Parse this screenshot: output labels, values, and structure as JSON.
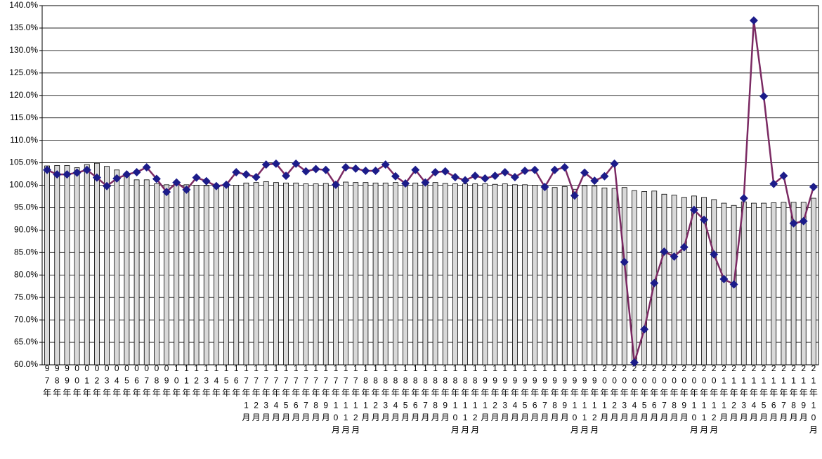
{
  "chart_data": {
    "type": "combo",
    "categories": [
      "97年",
      "98年",
      "99年",
      "00年",
      "01年",
      "02年",
      "03年",
      "04年",
      "05年",
      "06年",
      "07年",
      "08年",
      "09年",
      "10年",
      "11年",
      "12年",
      "13年",
      "14年",
      "15年",
      "16年",
      "17年1月",
      "17年2月",
      "17年3月",
      "17年4月",
      "17年5月",
      "17年6月",
      "17年7月",
      "17年8月",
      "17年9月",
      "17年10月",
      "17年11月",
      "17年12月",
      "18年1月",
      "18年2月",
      "18年3月",
      "18年4月",
      "18年5月",
      "18年6月",
      "18年7月",
      "18年8月",
      "18年9月",
      "18年10月",
      "18年11月",
      "18年12月",
      "19年1月",
      "19年2月",
      "19年3月",
      "19年4月",
      "19年5月",
      "19年6月",
      "19年7月",
      "19年8月",
      "19年9月",
      "19年10月",
      "19年11月",
      "19年12月",
      "20年1月",
      "20年2月",
      "20年3月",
      "20年4月",
      "20年5月",
      "20年6月",
      "20年7月",
      "20年8月",
      "20年9月",
      "20年10月",
      "20年11月",
      "20年12月",
      "21年1月",
      "21年2月",
      "21年3月",
      "21年4月",
      "21年5月",
      "21年6月",
      "21年7月",
      "21年8月",
      "21年9月",
      "21年10月"
    ],
    "series": [
      {
        "type": "bar",
        "color": "#d9d9d9",
        "values": [
          104.3,
          104.4,
          104.4,
          103.9,
          104.6,
          104.9,
          104.2,
          103.4,
          102.1,
          101.2,
          101.2,
          100.3,
          100.1,
          100.2,
          100.1,
          100.0,
          99.9,
          99.9,
          100.0,
          100.0,
          100.5,
          100.6,
          100.8,
          100.6,
          100.5,
          100.5,
          100.3,
          100.3,
          100.4,
          100.6,
          100.7,
          100.6,
          100.6,
          100.5,
          100.5,
          100.6,
          100.4,
          100.5,
          100.5,
          100.6,
          100.4,
          100.3,
          100.3,
          100.3,
          100.3,
          100.2,
          100.3,
          100.1,
          100.1,
          100.0,
          99.8,
          99.5,
          99.7,
          99.1,
          99.9,
          99.8,
          99.4,
          99.3,
          99.5,
          98.8,
          98.6,
          98.7,
          98.0,
          97.8,
          97.3,
          97.6,
          97.3,
          96.8,
          96.0,
          95.5,
          96.3,
          96.0,
          96.0,
          96.1,
          96.2,
          96.2,
          96.2,
          97.1
        ]
      },
      {
        "type": "line",
        "color": "#7b2a63",
        "marker_color": "#1c1c8a",
        "values": [
          103.4,
          102.4,
          102.4,
          102.8,
          103.4,
          101.7,
          99.8,
          101.5,
          102.4,
          102.9,
          104.0,
          101.4,
          98.5,
          100.6,
          99.0,
          101.7,
          100.9,
          99.8,
          100.1,
          102.9,
          102.4,
          101.8,
          104.6,
          104.8,
          102.1,
          104.8,
          103.1,
          103.6,
          103.4,
          100.1,
          104.0,
          103.7,
          103.2,
          103.2,
          104.6,
          102.0,
          100.4,
          103.4,
          100.6,
          102.9,
          103.1,
          101.8,
          101.1,
          102.1,
          101.5,
          102.1,
          102.9,
          101.8,
          103.2,
          103.4,
          99.6,
          103.4,
          104.0,
          97.7,
          102.8,
          101.0,
          102.0,
          104.8,
          82.9,
          60.5,
          67.9,
          78.2,
          85.2,
          84.1,
          86.2,
          94.5,
          92.3,
          84.6,
          79.1,
          77.9,
          97.1,
          136.7,
          119.8,
          100.3,
          102.1,
          91.5,
          92.0,
          99.6
        ]
      }
    ],
    "ylim": [
      60,
      140
    ],
    "yticks": [
      {
        "value": 60,
        "label": "60.0%"
      },
      {
        "value": 65,
        "label": "65.0%"
      },
      {
        "value": 70,
        "label": "70.0%"
      },
      {
        "value": 75,
        "label": "75.0%"
      },
      {
        "value": 80,
        "label": "80.0%"
      },
      {
        "value": 85,
        "label": "85.0%"
      },
      {
        "value": 90,
        "label": "90.0%"
      },
      {
        "value": 95,
        "label": "95.0%"
      },
      {
        "value": 100,
        "label": "100.0%"
      },
      {
        "value": 105,
        "label": "105.0%"
      },
      {
        "value": 110,
        "label": "110.0%"
      },
      {
        "value": 115,
        "label": "115.0%"
      },
      {
        "value": 120,
        "label": "120.0%"
      },
      {
        "value": 125,
        "label": "125.0%"
      },
      {
        "value": 130,
        "label": "130.0%"
      },
      {
        "value": 135,
        "label": "135.0%"
      },
      {
        "value": 140,
        "label": "140.0%"
      }
    ],
    "grid": true
  }
}
